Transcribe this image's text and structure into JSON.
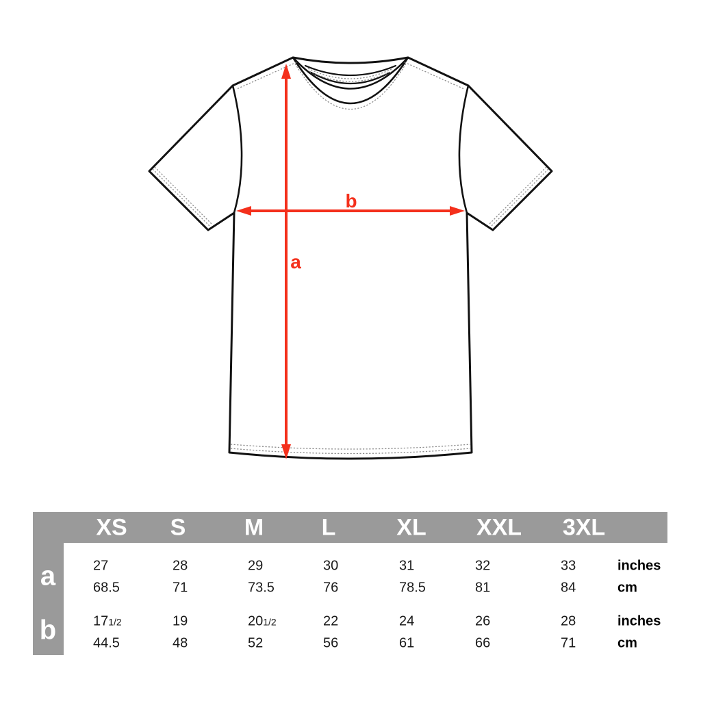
{
  "diagram": {
    "length_label": "a",
    "width_label": "b"
  },
  "size_chart": {
    "sizes": [
      "XS",
      "S",
      "M",
      "L",
      "XL",
      "XXL",
      "3XL"
    ],
    "row_groups": [
      {
        "dim": "a",
        "rows": [
          {
            "unit": "inches",
            "values": [
              {
                "n": "27"
              },
              {
                "n": "28"
              },
              {
                "n": "29"
              },
              {
                "n": "30"
              },
              {
                "n": "31"
              },
              {
                "n": "32"
              },
              {
                "n": "33"
              }
            ]
          },
          {
            "unit": "cm",
            "values": [
              {
                "n": "68.5"
              },
              {
                "n": "71"
              },
              {
                "n": "73.5"
              },
              {
                "n": "76"
              },
              {
                "n": "78.5"
              },
              {
                "n": "81"
              },
              {
                "n": "84"
              }
            ]
          }
        ]
      },
      {
        "dim": "b",
        "rows": [
          {
            "unit": "inches",
            "values": [
              {
                "n": "17",
                "frac": "1/2"
              },
              {
                "n": "19"
              },
              {
                "n": "20",
                "frac": "1/2"
              },
              {
                "n": "22"
              },
              {
                "n": "24"
              },
              {
                "n": "26"
              },
              {
                "n": "28"
              }
            ]
          },
          {
            "unit": "cm",
            "values": [
              {
                "n": "44.5"
              },
              {
                "n": "48"
              },
              {
                "n": "52"
              },
              {
                "n": "56"
              },
              {
                "n": "61"
              },
              {
                "n": "66"
              },
              {
                "n": "71"
              }
            ]
          }
        ]
      }
    ]
  },
  "colors": {
    "accent_red": "#f4301c",
    "table_gray": "#9a9a9a",
    "ink": "#1a1a1a"
  }
}
